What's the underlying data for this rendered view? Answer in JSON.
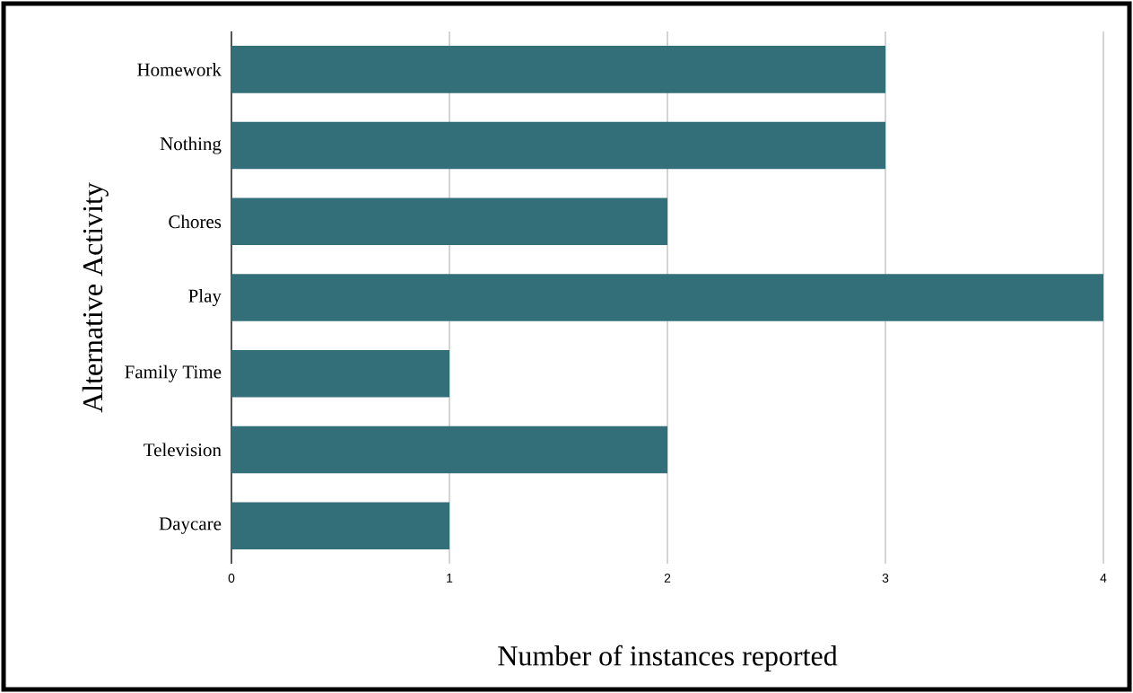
{
  "chart_data": {
    "type": "bar",
    "orientation": "horizontal",
    "xlabel": "Number of instances reported",
    "ylabel": "Alternative Activity",
    "categories": [
      "Homework",
      "Nothing",
      "Chores",
      "Play",
      "Family Time",
      "Television",
      "Daycare"
    ],
    "values": [
      3,
      3,
      2,
      4,
      1,
      2,
      1
    ],
    "color": "#336f78",
    "xlim": [
      0,
      4
    ],
    "xticks": [
      0,
      1,
      2,
      3,
      4
    ],
    "grid": "x"
  }
}
